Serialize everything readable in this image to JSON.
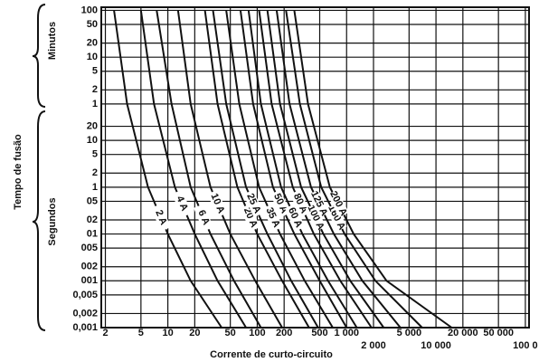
{
  "chart_data": {
    "type": "line",
    "x_label": "Corrente de curto-circuito",
    "y_label": "Tempo de fusão",
    "annotations": [
      "Minutos",
      "Segundos"
    ],
    "xscale": "log",
    "yscale": "log",
    "grid": true,
    "xlim": [
      1.8,
      110000
    ],
    "ylim": [
      0.001,
      7000
    ],
    "xticks": [
      2,
      5,
      10,
      20,
      50,
      100,
      200,
      500,
      {
        "value": 1000,
        "label": "1 000"
      },
      {
        "value": 2000,
        "label": "2 000"
      },
      {
        "value": 5000,
        "label": "5 000"
      },
      {
        "value": 10000,
        "label": "10 000"
      },
      {
        "value": 20000,
        "label": "20 000"
      },
      {
        "value": 50000,
        "label": "50 000"
      },
      {
        "value": 100000,
        "label": "100 0"
      }
    ],
    "yticks": [
      {
        "value": 6000,
        "label": "100"
      },
      {
        "value": 3000,
        "label": "50"
      },
      {
        "value": 1200,
        "label": "20"
      },
      {
        "value": 600,
        "label": "10"
      },
      {
        "value": 300,
        "label": "5"
      },
      {
        "value": 120,
        "label": "2"
      },
      {
        "value": 60,
        "label": "1"
      },
      20,
      10,
      5,
      2,
      1,
      {
        "value": 0.5,
        "label": "05"
      },
      {
        "value": 0.2,
        "label": "02"
      },
      {
        "value": 0.1,
        "label": "01"
      },
      {
        "value": 0.05,
        "label": "005"
      },
      {
        "value": 0.02,
        "label": "002"
      },
      {
        "value": 0.01,
        "label": "001"
      },
      {
        "value": 0.005,
        "label": "0,005"
      },
      {
        "value": 0.002,
        "label": "0,002"
      },
      {
        "value": 0.001,
        "label": "0,001"
      }
    ],
    "series": [
      {
        "name": "2 A",
        "color": "#111111",
        "x": [
          2.5,
          3.5,
          6,
          10,
          18,
          40
        ],
        "values": [
          6000,
          60,
          1,
          0.1,
          0.01,
          0.001
        ]
      },
      {
        "name": "4 A",
        "color": "#111111",
        "x": [
          5,
          7,
          12,
          20,
          36,
          75
        ],
        "values": [
          6000,
          60,
          1,
          0.1,
          0.01,
          0.001
        ]
      },
      {
        "name": "6 A",
        "color": "#111111",
        "x": [
          7.5,
          11,
          18,
          30,
          55,
          110
        ],
        "values": [
          6000,
          60,
          1,
          0.1,
          0.01,
          0.001
        ]
      },
      {
        "name": "10 A",
        "color": "#111111",
        "x": [
          13,
          18,
          30,
          50,
          95,
          190
        ],
        "values": [
          6000,
          60,
          1,
          0.1,
          0.01,
          0.001
        ]
      },
      {
        "name": "20 A",
        "color": "#111111",
        "x": [
          26,
          36,
          60,
          100,
          190,
          380
        ],
        "values": [
          6000,
          60,
          1,
          0.1,
          0.01,
          0.001
        ]
      },
      {
        "name": "25 A",
        "color": "#111111",
        "x": [
          32,
          45,
          75,
          130,
          240,
          480
        ],
        "values": [
          6000,
          60,
          1,
          0.1,
          0.01,
          0.001
        ]
      },
      {
        "name": "35 A",
        "color": "#111111",
        "x": [
          45,
          63,
          105,
          180,
          340,
          700
        ],
        "values": [
          6000,
          60,
          1,
          0.1,
          0.01,
          0.001
        ]
      },
      {
        "name": "50 A",
        "color": "#111111",
        "x": [
          65,
          90,
          150,
          260,
          500,
          1000
        ],
        "values": [
          6000,
          60,
          1,
          0.1,
          0.01,
          0.001
        ]
      },
      {
        "name": "60 A",
        "color": "#111111",
        "x": [
          80,
          110,
          185,
          320,
          620,
          1300
        ],
        "values": [
          6000,
          60,
          1,
          0.1,
          0.01,
          0.001
        ]
      },
      {
        "name": "80 A",
        "color": "#111111",
        "x": [
          105,
          145,
          250,
          430,
          850,
          1900
        ],
        "values": [
          6000,
          60,
          1,
          0.1,
          0.01,
          0.001
        ]
      },
      {
        "name": "100 A",
        "color": "#111111",
        "x": [
          130,
          180,
          310,
          550,
          1100,
          2600
        ],
        "values": [
          6000,
          60,
          1,
          0.1,
          0.01,
          0.001
        ]
      },
      {
        "name": "125 A",
        "color": "#111111",
        "x": [
          165,
          230,
          400,
          720,
          1500,
          4000
        ],
        "values": [
          6000,
          60,
          1,
          0.1,
          0.01,
          0.001
        ]
      },
      {
        "name": "160 A",
        "color": "#111111",
        "x": [
          210,
          300,
          520,
          950,
          2100,
          7000
        ],
        "values": [
          6000,
          60,
          1,
          0.1,
          0.01,
          0.001
        ]
      },
      {
        "name": "200 A",
        "color": "#111111",
        "x": [
          260,
          370,
          650,
          1200,
          2800,
          15000
        ],
        "values": [
          6000,
          60,
          1,
          0.1,
          0.01,
          0.001
        ]
      }
    ]
  }
}
